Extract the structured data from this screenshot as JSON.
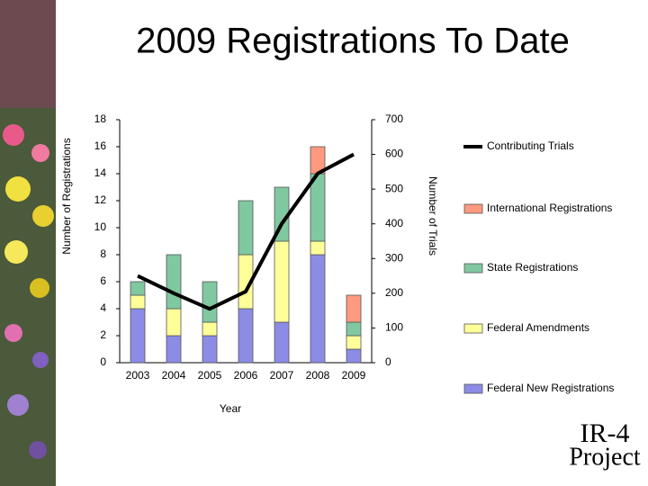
{
  "chart_data": {
    "type": "bar",
    "title": "2009 Registrations To Date",
    "categories": [
      "2003",
      "2004",
      "2005",
      "2006",
      "2007",
      "2008",
      "2009"
    ],
    "series": [
      {
        "name": "Federal New Registrations",
        "color": "#8c8ce6",
        "values": [
          4,
          2,
          2,
          4,
          3,
          8,
          1
        ]
      },
      {
        "name": "Federal Amendments",
        "color": "#ffff99",
        "values": [
          1,
          2,
          1,
          4,
          6,
          1,
          1
        ]
      },
      {
        "name": "State Registrations",
        "color": "#80c8a0",
        "values": [
          1,
          4,
          3,
          4,
          4,
          5,
          1
        ]
      },
      {
        "name": "International Registrations",
        "color": "#ff9980",
        "values": [
          0,
          0,
          0,
          0,
          0,
          2,
          2
        ]
      },
      {
        "name": "Contributing Trials",
        "color": "#000000",
        "type": "line",
        "axis": "y2",
        "values": [
          250,
          200,
          155,
          205,
          400,
          545,
          600
        ]
      }
    ],
    "ylabel": "Number of Registrations",
    "y2label": "Number of Trials",
    "xlabel": "Year",
    "ylim": [
      0,
      18
    ],
    "yticks": [
      0,
      2,
      4,
      6,
      8,
      10,
      12,
      14,
      16,
      18
    ],
    "y2lim": [
      0,
      700
    ],
    "y2ticks": [
      0,
      100,
      200,
      300,
      400,
      500,
      600,
      700
    ],
    "stacked": true
  },
  "logo": {
    "line1": "IR-4",
    "line2": "Project"
  }
}
